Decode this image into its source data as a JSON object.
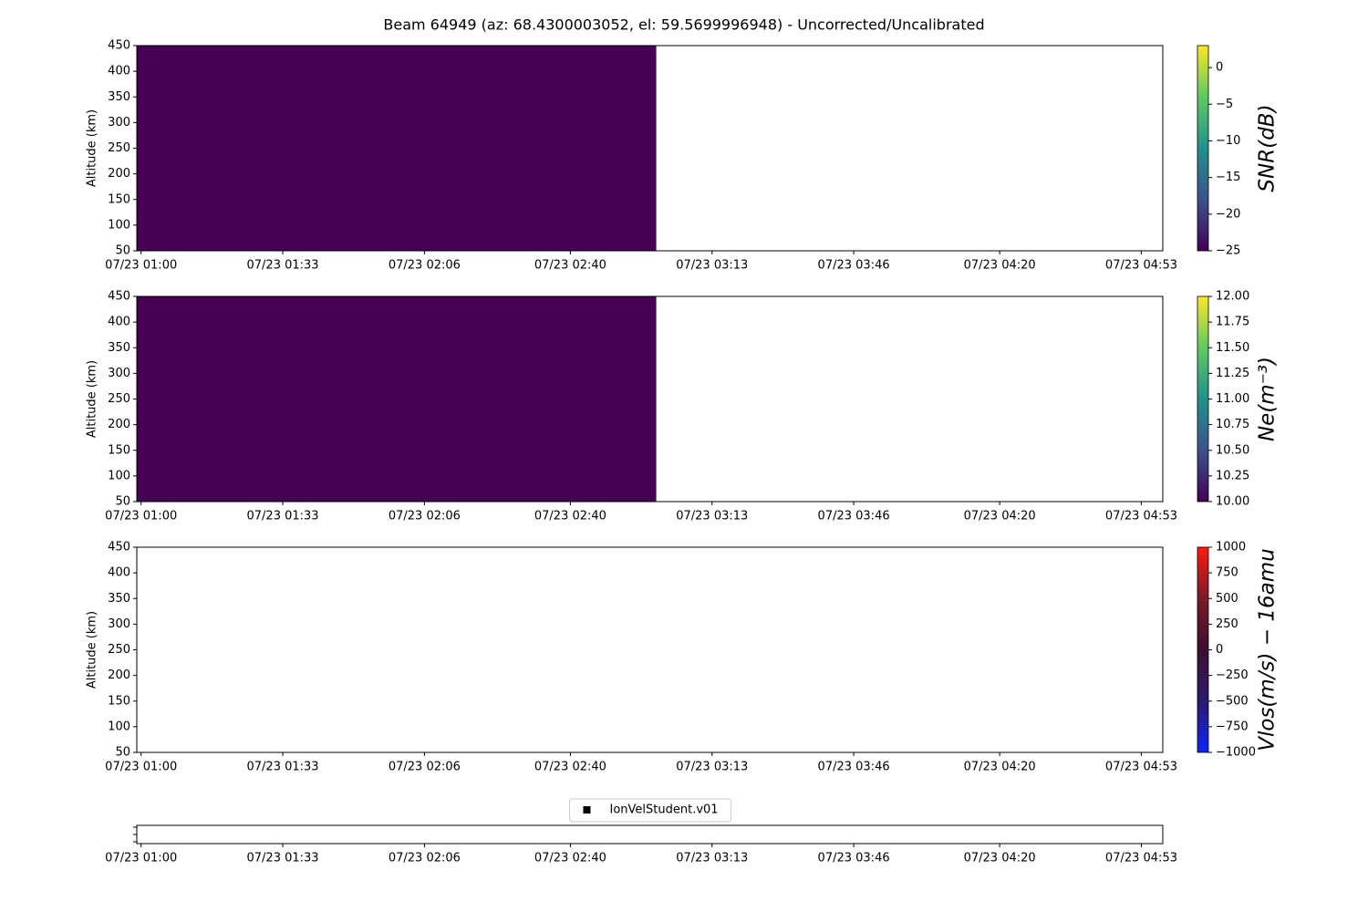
{
  "title": "Beam 64949 (az: 68.4300003052, el: 59.5699996948) - Uncorrected/Uncalibrated",
  "chart_data": [
    {
      "type": "heatmap",
      "ylabel": "Altitude (km)",
      "xlim": [
        59,
        298
      ],
      "xticks": [
        {
          "value": 60,
          "label": "07/23 01:00"
        },
        {
          "value": 93,
          "label": "07/23 01:33"
        },
        {
          "value": 126,
          "label": "07/23 02:06"
        },
        {
          "value": 160,
          "label": "07/23 02:40"
        },
        {
          "value": 193,
          "label": "07/23 03:13"
        },
        {
          "value": 226,
          "label": "07/23 03:46"
        },
        {
          "value": 260,
          "label": "07/23 04:20"
        },
        {
          "value": 293,
          "label": "07/23 04:53"
        }
      ],
      "ylim": [
        50,
        450
      ],
      "yticks": [
        50,
        100,
        150,
        200,
        250,
        300,
        350,
        400,
        450
      ],
      "cells": [
        {
          "x": [
            59,
            180
          ],
          "y": [
            50,
            450
          ],
          "value": -25
        }
      ],
      "colorbar": {
        "label": "SNR(dB)",
        "lim": [
          -25,
          3
        ],
        "colormap": [
          "#440154",
          "#3b528b",
          "#21918c",
          "#5ec962",
          "#fde725"
        ],
        "ticks": [
          {
            "value": -25,
            "label": "−25"
          },
          {
            "value": -20,
            "label": "−20"
          },
          {
            "value": -15,
            "label": "−15"
          },
          {
            "value": -10,
            "label": "−10"
          },
          {
            "value": -5,
            "label": "−5"
          },
          0
        ]
      }
    },
    {
      "type": "heatmap",
      "ylabel": "Altitude (km)",
      "xlim": [
        59,
        298
      ],
      "xticks": [
        {
          "value": 60,
          "label": "07/23 01:00"
        },
        {
          "value": 93,
          "label": "07/23 01:33"
        },
        {
          "value": 126,
          "label": "07/23 02:06"
        },
        {
          "value": 160,
          "label": "07/23 02:40"
        },
        {
          "value": 193,
          "label": "07/23 03:13"
        },
        {
          "value": 226,
          "label": "07/23 03:46"
        },
        {
          "value": 260,
          "label": "07/23 04:20"
        },
        {
          "value": 293,
          "label": "07/23 04:53"
        }
      ],
      "ylim": [
        50,
        450
      ],
      "yticks": [
        50,
        100,
        150,
        200,
        250,
        300,
        350,
        400,
        450
      ],
      "cells": [
        {
          "x": [
            59,
            180
          ],
          "y": [
            50,
            450
          ],
          "value": 10
        }
      ],
      "colorbar": {
        "label": "Ne(m⁻³)",
        "lim": [
          10,
          12
        ],
        "colormap": [
          "#440154",
          "#3b528b",
          "#21918c",
          "#5ec962",
          "#fde725"
        ],
        "ticks": [
          {
            "value": 10,
            "label": "10.00"
          },
          10.25,
          {
            "value": 10.5,
            "label": "10.50"
          },
          10.75,
          {
            "value": 11,
            "label": "11.00"
          },
          11.25,
          {
            "value": 11.5,
            "label": "11.50"
          },
          11.75,
          {
            "value": 12,
            "label": "12.00"
          }
        ]
      }
    },
    {
      "type": "heatmap",
      "ylabel": "Altitude (km)",
      "xlim": [
        59,
        298
      ],
      "xticks": [
        {
          "value": 60,
          "label": "07/23 01:00"
        },
        {
          "value": 93,
          "label": "07/23 01:33"
        },
        {
          "value": 126,
          "label": "07/23 02:06"
        },
        {
          "value": 160,
          "label": "07/23 02:40"
        },
        {
          "value": 193,
          "label": "07/23 03:13"
        },
        {
          "value": 226,
          "label": "07/23 03:46"
        },
        {
          "value": 260,
          "label": "07/23 04:20"
        },
        {
          "value": 293,
          "label": "07/23 04:53"
        }
      ],
      "ylim": [
        50,
        450
      ],
      "yticks": [
        50,
        100,
        150,
        200,
        250,
        300,
        350,
        400,
        450
      ],
      "cells": [],
      "colorbar": {
        "label": "Vlos(m/s) − 16amu",
        "lim": [
          -1000,
          1000
        ],
        "colormap": [
          "#0b24fb",
          "#2d1a6e",
          "#3d0f2f",
          "#7a1a2a",
          "#ff1a0f"
        ],
        "ticks": [
          {
            "value": -1000,
            "label": "−1000"
          },
          {
            "value": -750,
            "label": "−750"
          },
          {
            "value": -500,
            "label": "−500"
          },
          {
            "value": -250,
            "label": "−250"
          },
          0,
          250,
          500,
          750,
          1000
        ]
      }
    },
    {
      "type": "scatter",
      "xlim": [
        59,
        298
      ],
      "xticks": [
        {
          "value": 60,
          "label": "07/23 01:00"
        },
        {
          "value": 93,
          "label": "07/23 01:33"
        },
        {
          "value": 126,
          "label": "07/23 02:06"
        },
        {
          "value": 160,
          "label": "07/23 02:40"
        },
        {
          "value": 193,
          "label": "07/23 03:13"
        },
        {
          "value": 226,
          "label": "07/23 03:46"
        },
        {
          "value": 260,
          "label": "07/23 04:20"
        },
        {
          "value": 293,
          "label": "07/23 04:53"
        }
      ],
      "legend": "top",
      "series": [
        {
          "name": "IonVelStudent.v01",
          "color": "#000000",
          "x": [],
          "values": []
        }
      ]
    }
  ]
}
